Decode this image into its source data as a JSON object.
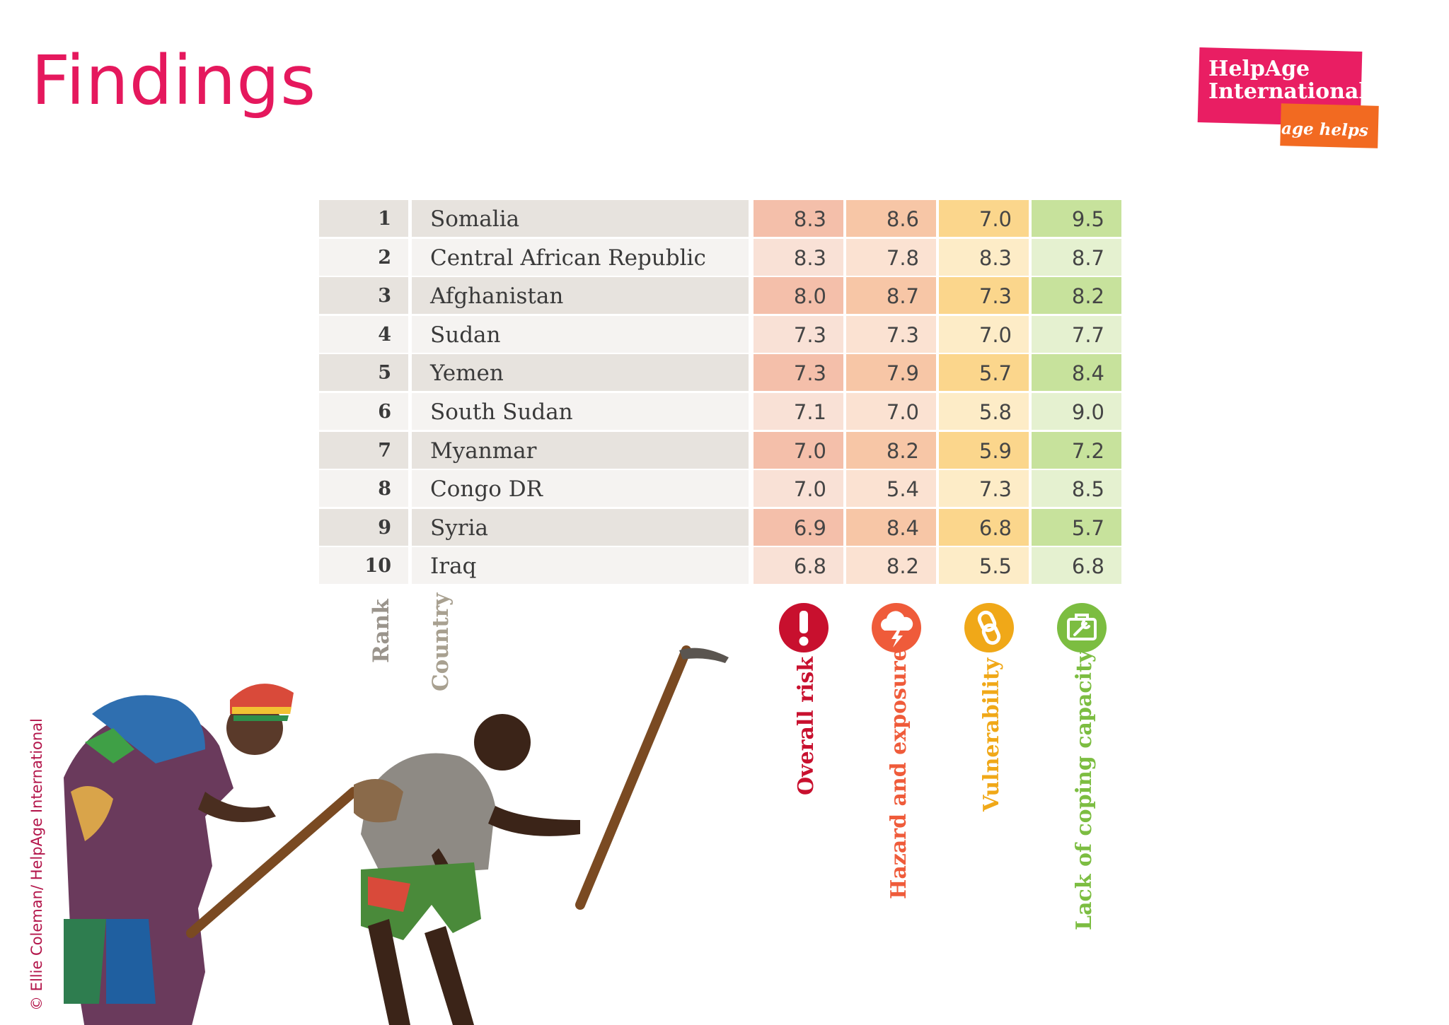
{
  "page": {
    "title": "Findings",
    "credit": "© Ellie Coleman/ HelpAge International"
  },
  "logo": {
    "line1": "HelpAge",
    "line2": "International",
    "tagline": "age helps"
  },
  "colors": {
    "title": "#e5185d",
    "logo_pink": "#e91e63",
    "logo_orange": "#f26a21",
    "overall_risk": "#c8102e",
    "hazard": "#ef5b3a",
    "vulnerability": "#f0a818",
    "lack_coping": "#7cbd41"
  },
  "icons": {
    "overall": "exclamation-icon",
    "hazard": "storm-cloud-icon",
    "vulnerability": "broken-chain-icon",
    "lack": "toolbox-icon"
  },
  "chart_data": {
    "type": "table",
    "columns": [
      "Rank",
      "Country",
      "Overall risk",
      "Hazard and exposure",
      "Vulnerability",
      "Lack of coping capacity"
    ],
    "rows": [
      {
        "rank": "1",
        "country": "Somalia",
        "overall": "8.3",
        "hazard": "8.6",
        "vulnerability": "7.0",
        "lack": "9.5"
      },
      {
        "rank": "2",
        "country": "Central African Republic",
        "overall": "8.3",
        "hazard": "7.8",
        "vulnerability": "8.3",
        "lack": "8.7"
      },
      {
        "rank": "3",
        "country": "Afghanistan",
        "overall": "8.0",
        "hazard": "8.7",
        "vulnerability": "7.3",
        "lack": "8.2"
      },
      {
        "rank": "4",
        "country": "Sudan",
        "overall": "7.3",
        "hazard": "7.3",
        "vulnerability": "7.0",
        "lack": "7.7"
      },
      {
        "rank": "5",
        "country": "Yemen",
        "overall": "7.3",
        "hazard": "7.9",
        "vulnerability": "5.7",
        "lack": "8.4"
      },
      {
        "rank": "6",
        "country": "South Sudan",
        "overall": "7.1",
        "hazard": "7.0",
        "vulnerability": "5.8",
        "lack": "9.0"
      },
      {
        "rank": "7",
        "country": "Myanmar",
        "overall": "7.0",
        "hazard": "8.2",
        "vulnerability": "5.9",
        "lack": "7.2"
      },
      {
        "rank": "8",
        "country": "Congo DR",
        "overall": "7.0",
        "hazard": "5.4",
        "vulnerability": "7.3",
        "lack": "8.5"
      },
      {
        "rank": "9",
        "country": "Syria",
        "overall": "6.9",
        "hazard": "8.4",
        "vulnerability": "6.8",
        "lack": "5.7"
      },
      {
        "rank": "10",
        "country": "Iraq",
        "overall": "6.8",
        "hazard": "8.2",
        "vulnerability": "5.5",
        "lack": "6.8"
      }
    ]
  }
}
